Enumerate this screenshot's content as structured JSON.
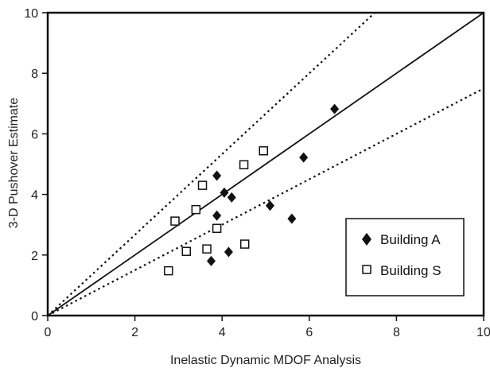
{
  "chart_data": {
    "type": "scatter",
    "xlabel": "Inelastic Dynamic MDOF Analysis",
    "ylabel": "3-D Pushover Estimate",
    "xlim": [
      0,
      10
    ],
    "ylim": [
      0,
      10
    ],
    "xticks": [
      "0",
      "2",
      "4",
      "6",
      "8",
      "10"
    ],
    "yticks": [
      "0",
      "2",
      "4",
      "6",
      "8",
      "10"
    ],
    "grid": false,
    "legend_position": "bottom-right",
    "series": [
      {
        "name": "Building A",
        "marker": "filled-diamond",
        "color": "#111111",
        "points": [
          {
            "x": 3.88,
            "y": 4.62
          },
          {
            "x": 4.05,
            "y": 4.06
          },
          {
            "x": 4.22,
            "y": 3.9
          },
          {
            "x": 3.88,
            "y": 3.3
          },
          {
            "x": 3.75,
            "y": 1.8
          },
          {
            "x": 4.15,
            "y": 2.1
          },
          {
            "x": 5.1,
            "y": 3.63
          },
          {
            "x": 5.6,
            "y": 3.2
          },
          {
            "x": 5.87,
            "y": 5.22
          },
          {
            "x": 6.58,
            "y": 6.82
          }
        ]
      },
      {
        "name": "Building S",
        "marker": "hollow-square",
        "color": "#111111",
        "points": [
          {
            "x": 2.77,
            "y": 1.48
          },
          {
            "x": 2.92,
            "y": 3.12
          },
          {
            "x": 3.18,
            "y": 2.12
          },
          {
            "x": 3.4,
            "y": 3.5
          },
          {
            "x": 3.55,
            "y": 4.3
          },
          {
            "x": 3.65,
            "y": 2.2
          },
          {
            "x": 3.88,
            "y": 2.88
          },
          {
            "x": 4.5,
            "y": 4.98
          },
          {
            "x": 4.52,
            "y": 2.36
          },
          {
            "x": 4.95,
            "y": 5.44
          }
        ]
      }
    ],
    "reference_lines": [
      {
        "style": "solid",
        "slope": 1.0
      },
      {
        "style": "dotted",
        "slope": 1.333
      },
      {
        "style": "dotted",
        "slope": 0.75
      }
    ]
  }
}
